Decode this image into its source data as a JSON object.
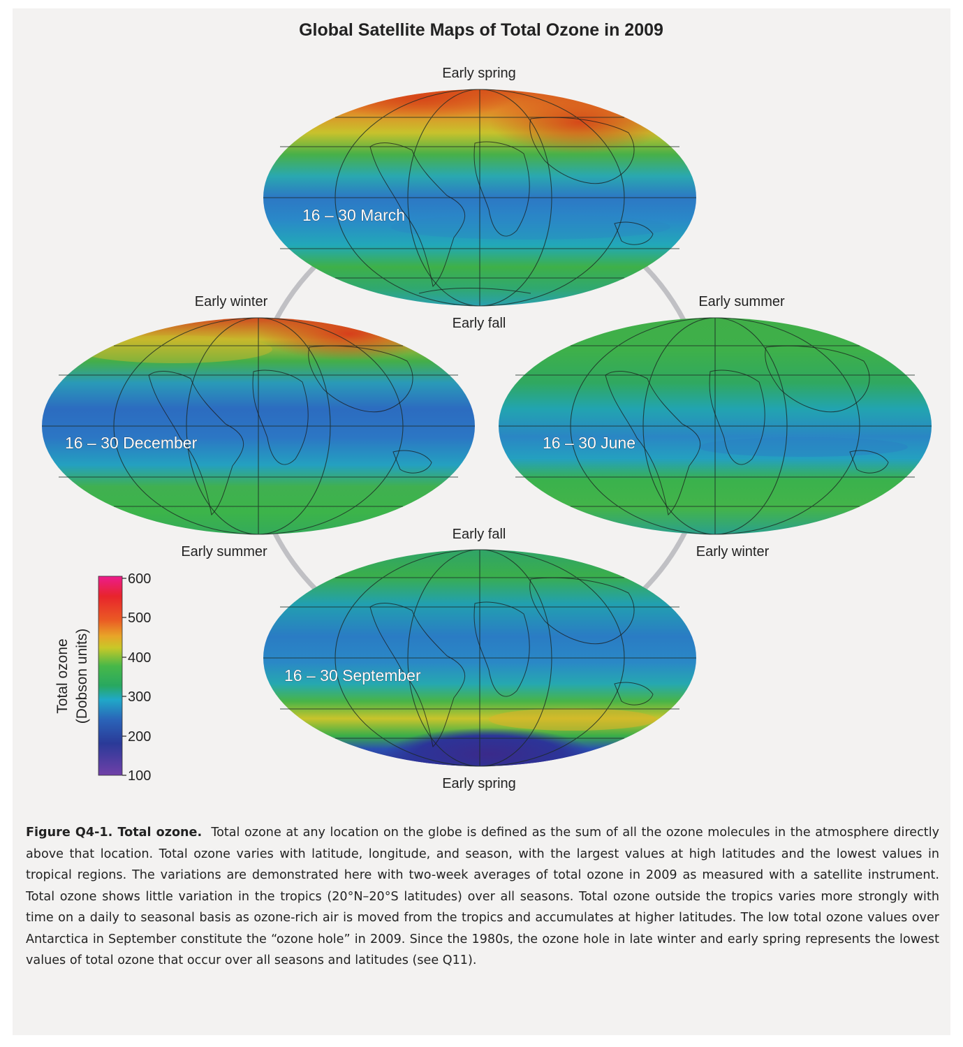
{
  "figure": {
    "title": "Global Satellite Maps of Total Ozone in 2009",
    "maps": [
      {
        "period": "16 – 30 March",
        "top_label": "Early spring",
        "bottom_label": "Early fall"
      },
      {
        "period": "16 – 30 December",
        "top_label": "Early winter",
        "bottom_label": "Early summer"
      },
      {
        "period": "16 – 30 June",
        "top_label": "Early summer",
        "bottom_label": "Early winter"
      },
      {
        "period": "16 – 30 September",
        "top_label": "Early fall",
        "bottom_label": "Early spring"
      }
    ],
    "colorbar": {
      "label_line1": "Total ozone",
      "label_line2": "(Dobson units)",
      "ticks": [
        "600",
        "500",
        "400",
        "300",
        "200",
        "100"
      ],
      "stops": [
        "#ec1c8c",
        "#e8242c",
        "#f07028",
        "#d8c820",
        "#40b848",
        "#22a070",
        "#20a8d0",
        "#2b56b0",
        "#2a3a98",
        "#6c3aa0"
      ]
    },
    "colors": {
      "high_ozone": "#e0481e",
      "mid_high": "#d8c22a",
      "mid": "#3fb24a",
      "mid_low": "#22a8b8",
      "low": "#2d6fc0",
      "very_low": "#2a2e8e",
      "arc": "#c0c0c4"
    }
  },
  "caption": {
    "label": "Figure Q4-1.  Total ozone.",
    "text": "Total ozone at any location on the globe is defined as the sum of all the ozone molecules in the atmosphere directly above that location.  Total ozone varies with latitude, longitude, and season, with the largest values at high latitudes and the lowest values in tropical regions.  The variations are demonstrated here with two-week averages of total ozone in 2009 as measured with a satellite instrument.  Total ozone shows little variation in the tropics (20°N–20°S latitudes) over all seasons.  Total ozone outside the tropics varies more strongly with time on a daily to seasonal basis as ozone-rich air is moved from the tropics and accumulates at higher latitudes.  The low total ozone values over Antarctica in September constitute the “ozone hole” in 2009.  Since the 1980s, the ozone hole in late winter and early spring represents the lowest values of total ozone that occur over all seasons and latitudes (see Q11)."
  }
}
